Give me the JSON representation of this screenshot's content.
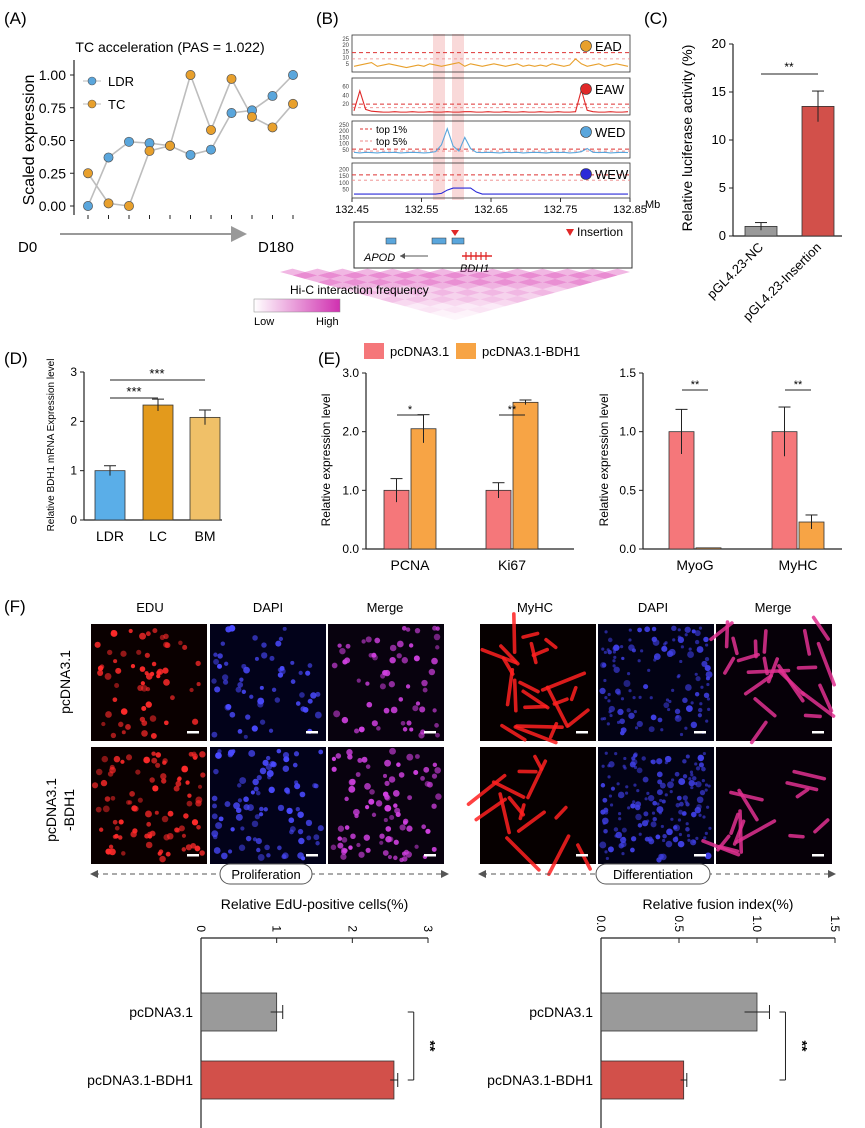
{
  "panel_labels": {
    "a": "(A)",
    "b": "(B)",
    "c": "(C)",
    "d": "(D)",
    "e": "(E)",
    "f": "(F)"
  },
  "colors": {
    "blue": "#5aa6dc",
    "orange": "#e8a02c",
    "red": "#e02828",
    "navy": "#2a2ad8",
    "bar_red": "#d2504a",
    "bar_grey": "#9a9a9a",
    "pink": "#f5777a",
    "bar_orange": "#f7a445",
    "ldr_bar": "#5aaee8",
    "lc_bar": "#e39a1c",
    "bm_bar": "#f0c068",
    "hic": "#e060c0"
  },
  "chart_data": [
    {
      "id": "A",
      "type": "line",
      "title": "TC acceleration (PAS = 1.022)",
      "ylabel": "Scaled expression",
      "xlabel_start": "D0",
      "xlabel_end": "D180",
      "yticks": [
        "0.00",
        "0.25",
        "0.50",
        "0.75",
        "1.00"
      ],
      "ylim": [
        0,
        1
      ],
      "x": [
        1,
        2,
        3,
        4,
        5,
        6,
        7,
        8,
        9,
        10,
        11
      ],
      "series": [
        {
          "name": "LDR",
          "values": [
            0.0,
            0.37,
            0.49,
            0.48,
            0.46,
            0.39,
            0.43,
            0.71,
            0.73,
            0.84,
            1.0
          ]
        },
        {
          "name": "TC",
          "values": [
            0.25,
            0.02,
            0.0,
            0.42,
            0.46,
            1.0,
            0.58,
            0.97,
            0.68,
            0.6,
            0.78
          ]
        }
      ]
    },
    {
      "id": "B",
      "type": "line",
      "xlabel_unit": "Mb",
      "xticks": [
        "132.45",
        "132.55",
        "132.65",
        "132.75",
        "132.85"
      ],
      "xlim": [
        132.45,
        132.85
      ],
      "legend_top1": "top 1%",
      "legend_top5": "top 5%",
      "tracks": [
        {
          "name": "EAD",
          "yticks": [
            "5",
            "10",
            "15",
            "20",
            "25"
          ],
          "ymax": 25,
          "top1": 14,
          "top5": 9,
          "values": [
            3,
            4,
            5,
            6,
            3,
            4,
            5,
            4,
            3,
            2,
            3,
            4,
            3,
            5,
            4,
            3,
            4,
            5,
            6,
            3,
            5,
            4,
            3,
            4,
            5,
            4,
            3,
            4,
            5,
            3,
            4,
            3,
            4,
            3,
            5,
            4,
            3,
            4,
            9,
            5,
            3,
            4,
            5,
            3,
            4,
            5,
            4,
            3
          ]
        },
        {
          "name": "EAW",
          "yticks": [
            "20",
            "40",
            "60"
          ],
          "ymax": 70,
          "top1": 20,
          "top5": 12,
          "values": [
            5,
            50,
            8,
            4,
            3,
            2,
            2,
            3,
            2,
            2,
            3,
            2,
            2,
            3,
            2,
            2,
            3,
            2,
            2,
            3,
            3,
            2,
            2,
            3,
            2,
            2,
            3,
            2,
            2,
            3,
            2,
            2,
            3,
            2,
            2,
            3,
            2,
            2,
            3,
            52,
            6,
            3,
            2,
            2,
            3,
            2,
            2,
            3
          ]
        },
        {
          "name": "WED",
          "yticks": [
            "50",
            "100",
            "150",
            "200",
            "250"
          ],
          "ymax": 250,
          "top1": 55,
          "top5": 40,
          "values": [
            30,
            25,
            30,
            28,
            25,
            30,
            28,
            30,
            25,
            28,
            30,
            28,
            25,
            28,
            35,
            90,
            220,
            80,
            40,
            150,
            60,
            30,
            28,
            30,
            28,
            25,
            30,
            28,
            30,
            25,
            28,
            30,
            28,
            25,
            30,
            28,
            30,
            25,
            28,
            35,
            60,
            30,
            28,
            30,
            25,
            28,
            30,
            28
          ]
        },
        {
          "name": "WEW",
          "yticks": [
            "50",
            "100",
            "150",
            "200"
          ],
          "ymax": 220,
          "top1": 160,
          "top5": 120,
          "values": [
            15,
            15,
            15,
            15,
            15,
            15,
            15,
            15,
            15,
            15,
            15,
            15,
            15,
            15,
            15,
            20,
            45,
            60,
            60,
            60,
            60,
            30,
            15,
            15,
            15,
            15,
            15,
            15,
            15,
            15,
            15,
            15,
            15,
            15,
            15,
            15,
            15,
            15,
            15,
            15,
            15,
            15,
            15,
            15,
            15,
            15,
            15,
            15
          ]
        }
      ],
      "genes": {
        "apod": "APOD",
        "bdh1": "BDH1",
        "insertion": "Insertion"
      },
      "hic": {
        "title": "Hi-C interaction frequency",
        "low": "Low",
        "high": "High"
      }
    },
    {
      "id": "C",
      "type": "bar",
      "ylabel": "Relative luciferase activity (%)",
      "categories": [
        "pGL4.23-NC",
        "pGL4.23-Insertion"
      ],
      "values": [
        1.0,
        13.5
      ],
      "errors": [
        0.4,
        1.6
      ],
      "ylim": [
        0,
        20
      ],
      "yticks": [
        "0",
        "5",
        "10",
        "15",
        "20"
      ],
      "significance": "**"
    },
    {
      "id": "D",
      "type": "bar",
      "ylabel": "Relative BDH1 mRNA Expression level",
      "categories": [
        "LDR",
        "LC",
        "BM"
      ],
      "values": [
        1.0,
        2.33,
        2.08
      ],
      "errors": [
        0.1,
        0.12,
        0.15
      ],
      "ylim": [
        0,
        3
      ],
      "yticks": [
        "0",
        "1",
        "2",
        "3"
      ],
      "significance": [
        "***",
        "***"
      ]
    },
    {
      "id": "E-left",
      "type": "bar",
      "ylabel": "Relative expression level",
      "categories": [
        "PCNA",
        "Ki67"
      ],
      "series": [
        {
          "name": "pcDNA3.1",
          "values": [
            1.0,
            1.0
          ],
          "errors": [
            0.2,
            0.13
          ]
        },
        {
          "name": "pcDNA3.1-BDH1",
          "values": [
            2.05,
            2.5
          ],
          "errors": [
            0.24,
            0.04
          ]
        }
      ],
      "ylim": [
        0,
        3
      ],
      "yticks": [
        "0.0",
        "1.0",
        "2.0",
        "3.0"
      ],
      "significance": [
        "*",
        "**"
      ]
    },
    {
      "id": "E-right",
      "type": "bar",
      "ylabel": "Relative expression level",
      "categories": [
        "MyoG",
        "MyHC"
      ],
      "series": [
        {
          "name": "pcDNA3.1",
          "values": [
            1.0,
            1.0
          ],
          "errors": [
            0.19,
            0.21
          ]
        },
        {
          "name": "pcDNA3.1-BDH1",
          "values": [
            0.01,
            0.23
          ],
          "errors": [
            0.0,
            0.06
          ]
        }
      ],
      "ylim": [
        0,
        1.5
      ],
      "yticks": [
        "0.0",
        "0.5",
        "1.0",
        "1.5"
      ],
      "significance": [
        "**",
        "**"
      ]
    },
    {
      "id": "F-left",
      "type": "bar",
      "orientation": "horizontal",
      "title": "Relative EdU-positive cells(%)",
      "categories": [
        "pcDNA3.1",
        "pcDNA3.1-BDH1"
      ],
      "values": [
        1.0,
        2.55
      ],
      "errors": [
        0.08,
        0.05
      ],
      "xlim": [
        0,
        3
      ],
      "xticks": [
        "0",
        "1",
        "2",
        "3"
      ],
      "significance": "**"
    },
    {
      "id": "F-right",
      "type": "bar",
      "orientation": "horizontal",
      "title": "Relative fusion index(%)",
      "categories": [
        "pcDNA3.1",
        "pcDNA3.1-BDH1"
      ],
      "values": [
        1.0,
        0.53
      ],
      "errors": [
        0.08,
        0.02
      ],
      "xlim": [
        0,
        1.5
      ],
      "xticks": [
        "0.0",
        "0.5",
        "1.0",
        "1.5"
      ],
      "significance": "**"
    }
  ],
  "micro": {
    "left_cols": [
      "EDU",
      "DAPI",
      "Merge"
    ],
    "right_cols": [
      "MyHC",
      "DAPI",
      "Merge"
    ],
    "row1": "pcDNA3.1",
    "row2a": "pcDNA3.1",
    "row2b": "-BDH1",
    "left_caption": "Proliferation",
    "right_caption": "Differentiation"
  }
}
